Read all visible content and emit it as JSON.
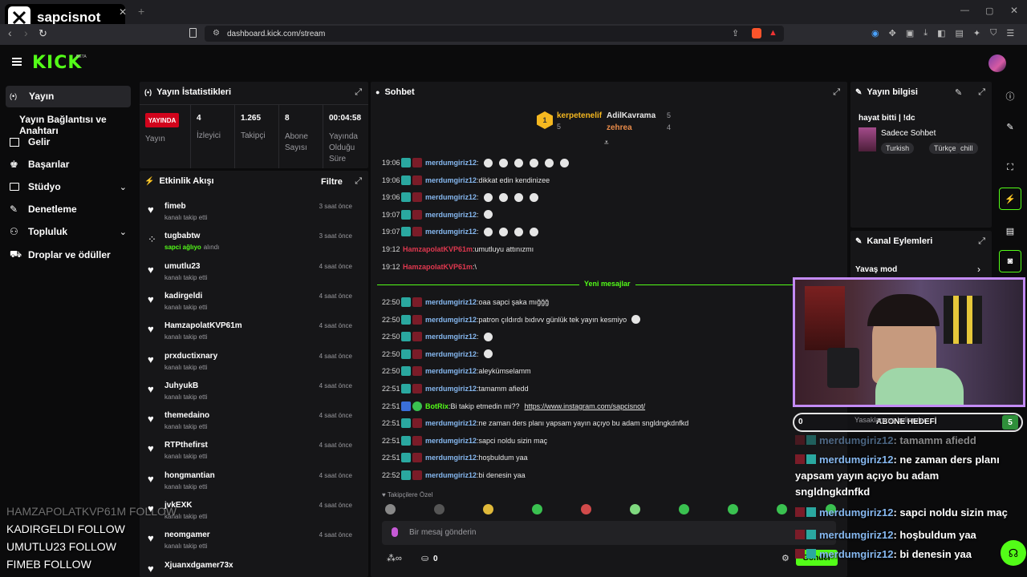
{
  "browser": {
    "tab_title": "sapcisnot",
    "url": "dashboard.kick.com/stream"
  },
  "header": {
    "logo": "KICK",
    "beta": "BETA"
  },
  "sidebar": {
    "items": [
      {
        "label": "Yayın",
        "icon": "broadcast-icon"
      },
      {
        "label": "Yayın Bağlantısı ve Anahtarı",
        "icon": ""
      },
      {
        "label": "Gelir",
        "icon": "chart-icon"
      },
      {
        "label": "Başarılar",
        "icon": "trophy-icon"
      },
      {
        "label": "Stüdyo",
        "icon": "studio-icon"
      },
      {
        "label": "Denetleme",
        "icon": "wrench-icon"
      },
      {
        "label": "Topluluk",
        "icon": "people-icon"
      },
      {
        "label": "Droplar ve ödüller",
        "icon": "gift-icon"
      }
    ]
  },
  "stats": {
    "title": "Yayın İstatistikleri",
    "live": "YAYINDA",
    "status_label": "Yayın",
    "items": [
      {
        "value": "4",
        "label": "İzleyici"
      },
      {
        "value": "1.265",
        "label": "Takipçi"
      },
      {
        "value": "8",
        "label": "Abone Sayısı"
      },
      {
        "value": "00:04:58",
        "label": "Yayında Olduğu Süre"
      }
    ]
  },
  "activity": {
    "title": "Etkinlik Akışı",
    "filter": "Filtre",
    "events": [
      {
        "user": "fimeb",
        "detail": "kanalı takip etti",
        "time": "3 saat önce",
        "gift": false
      },
      {
        "user": "tugbabtw",
        "detail_hl": "sapci ağlıyo",
        "detail": "alındı",
        "time": "3 saat önce",
        "gift": true
      },
      {
        "user": "umutlu23",
        "detail": "kanalı takip etti",
        "time": "4 saat önce",
        "gift": false
      },
      {
        "user": "kadirgeldi",
        "detail": "kanalı takip etti",
        "time": "4 saat önce",
        "gift": false
      },
      {
        "user": "HamzapolatKVP61m",
        "detail": "kanalı takip etti",
        "time": "4 saat önce",
        "gift": false
      },
      {
        "user": "prxductixnary",
        "detail": "kanalı takip etti",
        "time": "4 saat önce",
        "gift": false
      },
      {
        "user": "JuhyukB",
        "detail": "kanalı takip etti",
        "time": "4 saat önce",
        "gift": false
      },
      {
        "user": "themedaino",
        "detail": "kanalı takip etti",
        "time": "4 saat önce",
        "gift": false
      },
      {
        "user": "RTPthefirst",
        "detail": "kanalı takip etti",
        "time": "4 saat önce",
        "gift": false
      },
      {
        "user": "hongmantian",
        "detail": "kanalı takip etti",
        "time": "4 saat önce",
        "gift": false
      },
      {
        "user": "jvkEXK",
        "detail": "kanalı takip etti",
        "time": "4 saat önce",
        "gift": false
      },
      {
        "user": "neomgamer",
        "detail": "kanalı takip etti",
        "time": "4 saat önce",
        "gift": false
      },
      {
        "user": "Xjuanxdgamer73x",
        "detail": "",
        "time": "",
        "gift": false
      }
    ]
  },
  "chat": {
    "title": "Sohbet",
    "top": [
      {
        "name": "kerpetenelif",
        "count": "5"
      },
      {
        "name": "AdilKavrama",
        "count": "5"
      },
      {
        "name": "zehrea",
        "count": "4"
      }
    ],
    "old": [
      {
        "t": "19:06",
        "u": "merdumgiriz12",
        "m": "",
        "emojis": 6
      },
      {
        "t": "19:06",
        "u": "merdumgiriz12",
        "m": "dikkat edin kendinizee",
        "emojis": 0
      },
      {
        "t": "19:06",
        "u": "merdumgiriz12",
        "m": "",
        "emojis": 4
      },
      {
        "t": "19:07",
        "u": "merdumgiriz12",
        "m": "",
        "emojis": 1
      },
      {
        "t": "19:07",
        "u": "merdumgiriz12",
        "m": "",
        "emojis": 4
      },
      {
        "t": "19:12",
        "u": "HamzapolatKVP61m",
        "m": "umutluyu attınızmı",
        "emojis": 0
      },
      {
        "t": "19:12",
        "u": "HamzapolatKVP61m",
        "m": "\\",
        "emojis": 0
      }
    ],
    "new_label": "Yeni mesajlar",
    "new": [
      {
        "t": "22:50",
        "u": "merdumgiriz12",
        "m": "oaa sapci şaka mığğğ",
        "emojis": 0
      },
      {
        "t": "22:50",
        "u": "merdumgiriz12",
        "m": "patron çıldırdı bıdıvv günlük tek yayın kesmiyo",
        "emojis": 1
      },
      {
        "t": "22:50",
        "u": "merdumgiriz12",
        "m": "",
        "emojis": 1
      },
      {
        "t": "22:50",
        "u": "merdumgiriz12",
        "m": "",
        "emojis": 1
      },
      {
        "t": "22:50",
        "u": "merdumgiriz12",
        "m": "aleykümselamm",
        "emojis": 0
      },
      {
        "t": "22:51",
        "u": "merdumgiriz12",
        "m": "tamamm afiedd",
        "emojis": 0
      },
      {
        "t": "22:51",
        "u": "BotRix",
        "m": "Bi takip etmedin mi?? ",
        "link": "https://www.instagram.com/sapcisnot/",
        "emojis": 0
      },
      {
        "t": "22:51",
        "u": "merdumgiriz12",
        "m": "ne zaman ders planı yapsam yayın açıyo bu adam sngldngkdnfkd",
        "emojis": 0
      },
      {
        "t": "22:51",
        "u": "merdumgiriz12",
        "m": "sapci noldu sizin maç",
        "emojis": 0
      },
      {
        "t": "22:51",
        "u": "merdumgiriz12",
        "m": "hoşbuldum yaa",
        "emojis": 0
      },
      {
        "t": "22:52",
        "u": "merdumgiriz12",
        "m": "bi denesin yaa",
        "emojis": 0
      }
    ],
    "followers_only": "Takipçilere Özel",
    "input_placeholder": "Bir mesaj gönderin",
    "points": "0",
    "send": "Gönder"
  },
  "info": {
    "title": "Yayın bilgisi",
    "stream_title": "hayat bitti | !dc",
    "category": "Sadece Sohbet",
    "tags": [
      "Turkish",
      "Türkçe",
      "chill"
    ]
  },
  "actions": {
    "title": "Kanal Eylemleri",
    "items": [
      "Yavaş mod",
      "Yasaklanmış kelimeler"
    ]
  },
  "sub_goal": {
    "label": "ABONE HEDEFİ",
    "current": "0",
    "target": "5"
  },
  "overlay": {
    "follows": [
      "HAMZAPOLATKVP61M  FOLLOW",
      "KADIRGELDI  FOLLOW",
      "UMUTLU23  FOLLOW",
      "FIMEB  FOLLOW"
    ],
    "chat": [
      {
        "u": "merdumgiriz12",
        "m": ": tamamm afiedd"
      },
      {
        "u": "merdumgiriz12",
        "m": ": ne zaman ders planı yapsam yayın açıyo bu adam sngldngkdnfkd"
      },
      {
        "u": "merdumgiriz12",
        "m": ": sapci noldu sizin maç"
      },
      {
        "u": "merdumgiriz12",
        "m": ": hoşbuldum yaa"
      },
      {
        "u": "merdumgiriz12",
        "m": ": bi denesin yaa"
      }
    ]
  },
  "colors": {
    "kick_green": "#53fc18",
    "live_red": "#d1041c",
    "panel": "#161618",
    "bg": "#0b0b0c",
    "webcam_border": "#c38bf5"
  }
}
